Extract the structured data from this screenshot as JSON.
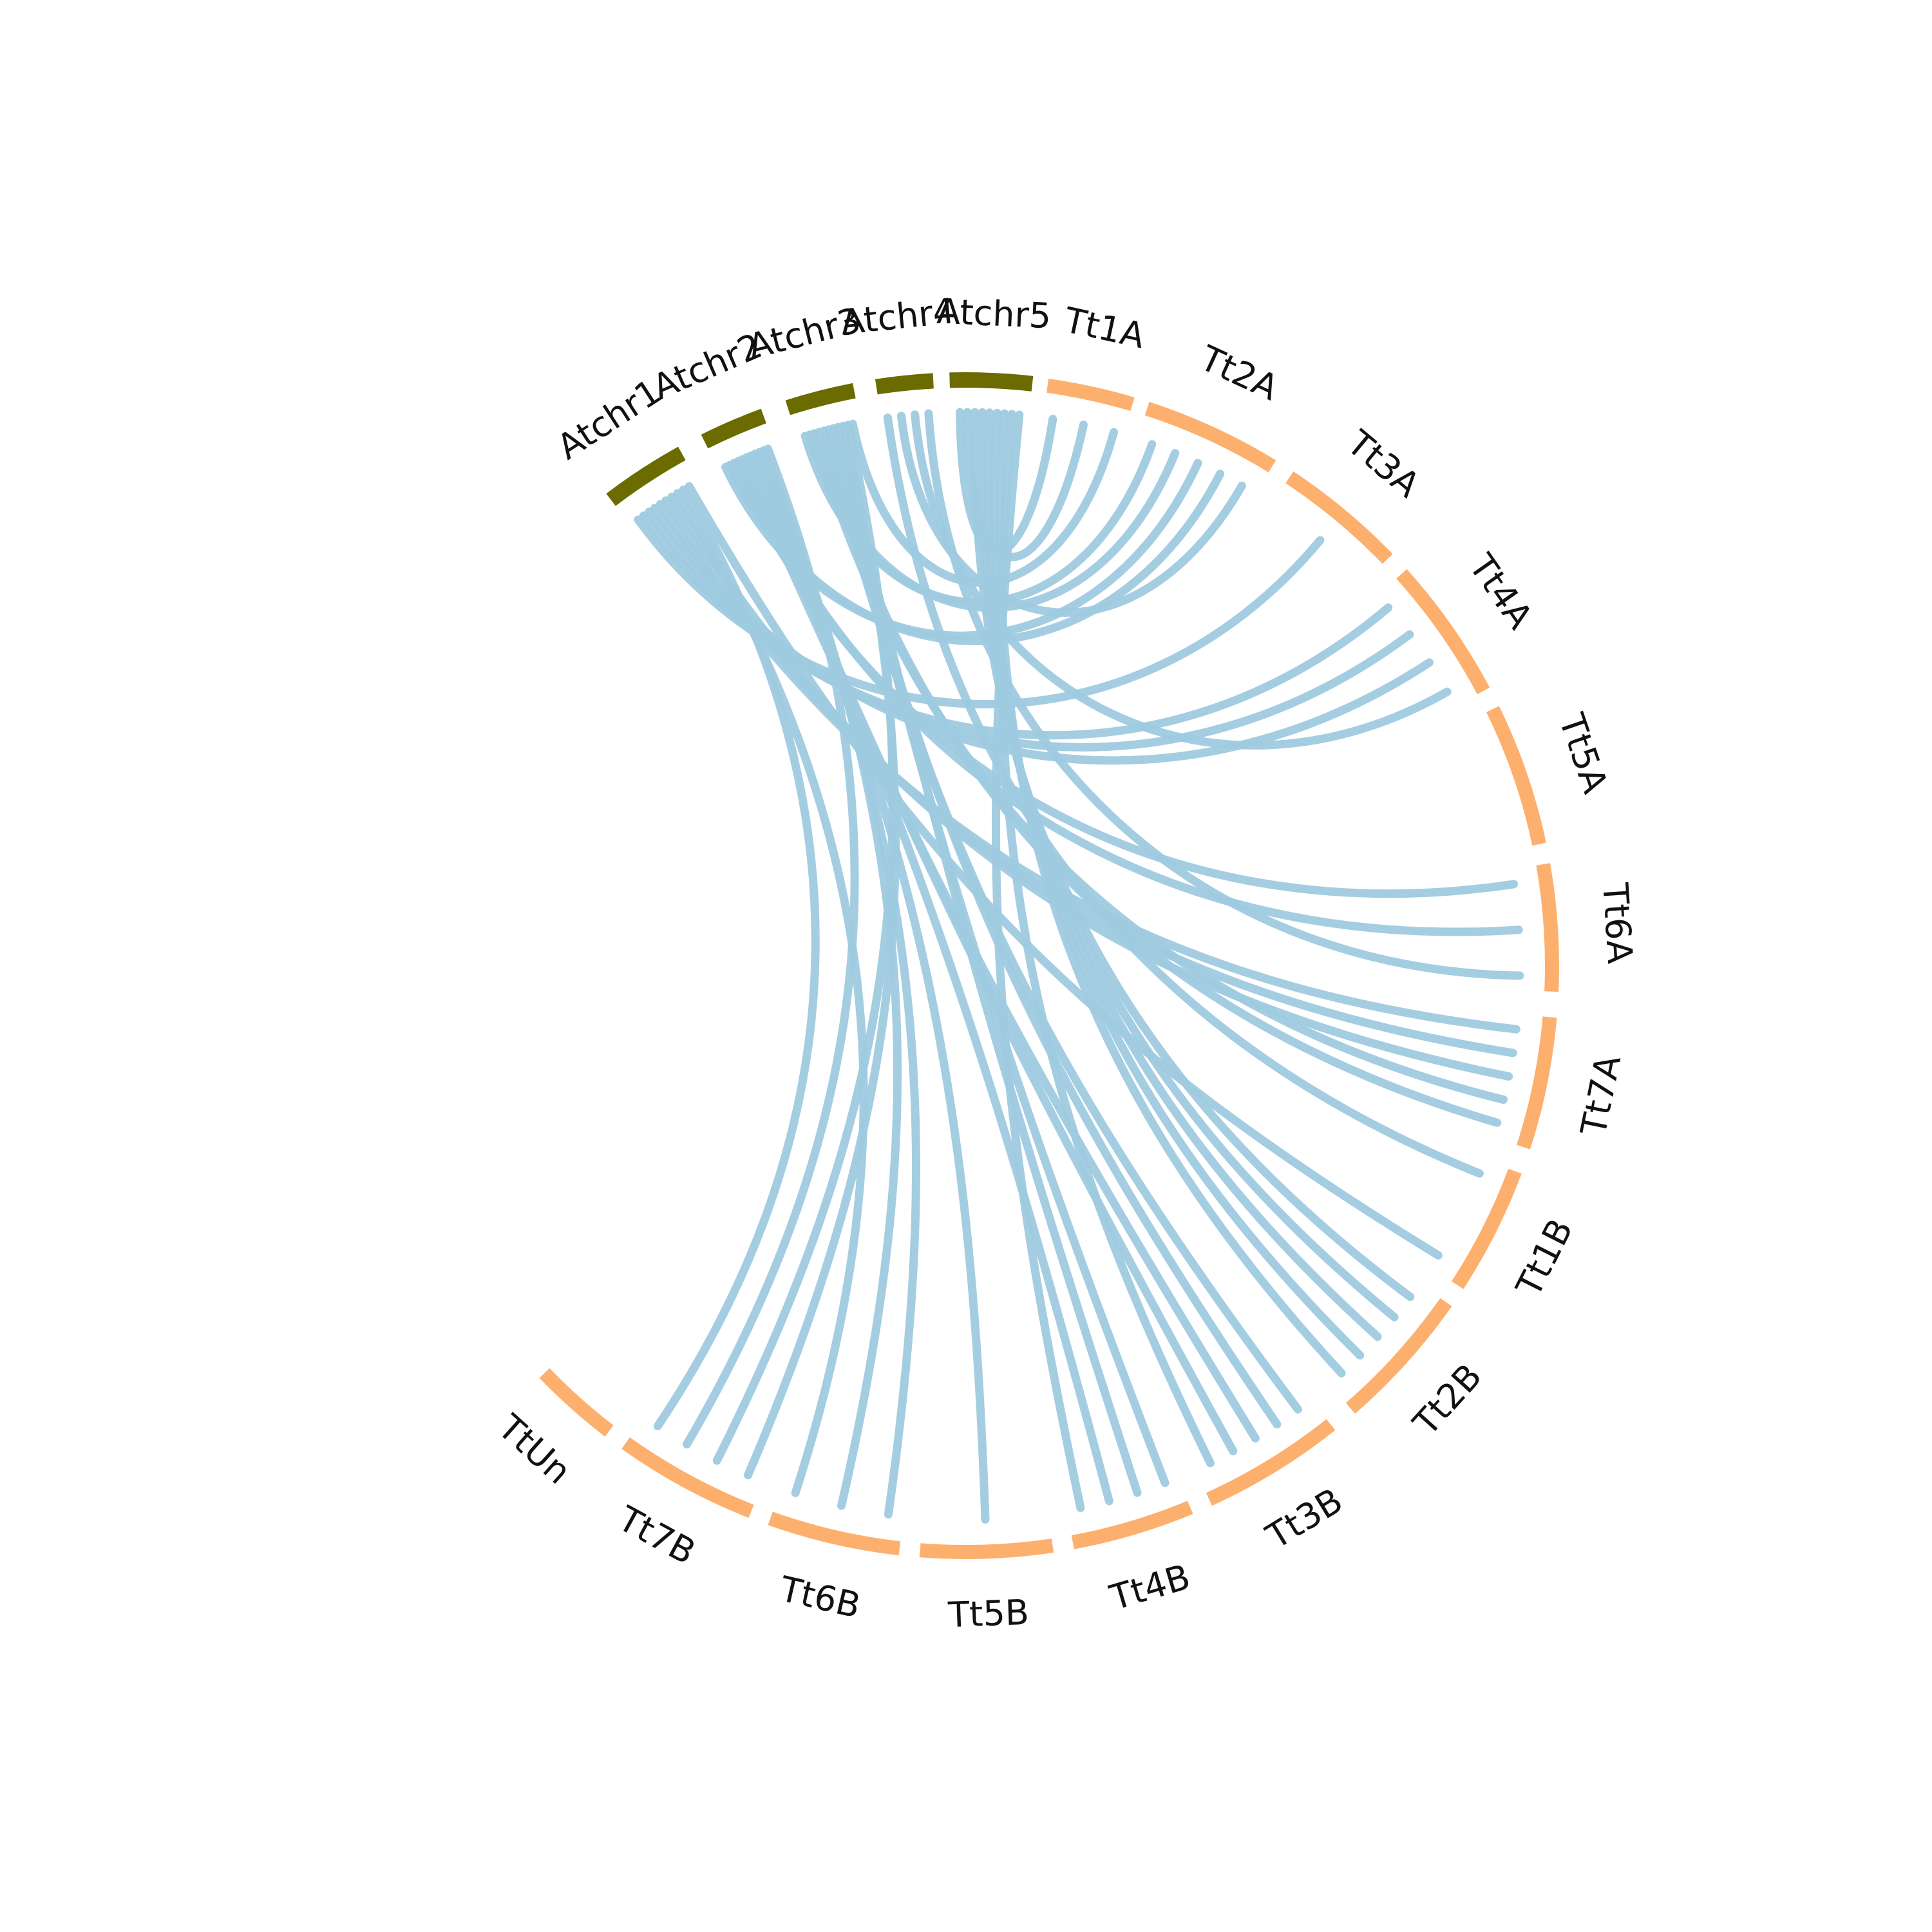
{
  "diagram": {
    "type": "circos",
    "colors": {
      "query_segment": "#6b6b00",
      "target_segment": "#fdb06e",
      "link": "#9fcae0"
    },
    "segments": [
      {
        "label": "Atchr1",
        "group": "query"
      },
      {
        "label": "Atchr2",
        "group": "query"
      },
      {
        "label": "Atchr3",
        "group": "query"
      },
      {
        "label": "Atchr4",
        "group": "query"
      },
      {
        "label": "Atchr5",
        "group": "query"
      },
      {
        "label": "Tt1A",
        "group": "target"
      },
      {
        "label": "Tt2A",
        "group": "target"
      },
      {
        "label": "Tt3A",
        "group": "target"
      },
      {
        "label": "Tt4A",
        "group": "target"
      },
      {
        "label": "Tt5A",
        "group": "target"
      },
      {
        "label": "Tt6A",
        "group": "target"
      },
      {
        "label": "Tt7A",
        "group": "target"
      },
      {
        "label": "Tt1B",
        "group": "target"
      },
      {
        "label": "Tt2B",
        "group": "target"
      },
      {
        "label": "Tt3B",
        "group": "target"
      },
      {
        "label": "Tt4B",
        "group": "target"
      },
      {
        "label": "Tt5B",
        "group": "target"
      },
      {
        "label": "Tt6B",
        "group": "target"
      },
      {
        "label": "Tt7B",
        "group": "target"
      },
      {
        "label": "TtUn",
        "group": "target"
      }
    ],
    "links": [
      {
        "from": "Atchr5",
        "to": "Tt1A"
      },
      {
        "from": "Atchr5",
        "to": "Tt1A"
      },
      {
        "from": "Atchr3",
        "to": "Tt2A"
      },
      {
        "from": "Atchr3",
        "to": "Tt2A"
      },
      {
        "from": "Atchr2",
        "to": "Tt2A"
      },
      {
        "from": "Atchr2",
        "to": "Tt2A"
      },
      {
        "from": "Atchr1",
        "to": "Tt3A"
      },
      {
        "from": "Atchr1",
        "to": "Tt4A"
      },
      {
        "from": "Atchr1",
        "to": "Tt4A"
      },
      {
        "from": "Atchr1",
        "to": "Tt4A"
      },
      {
        "from": "Atchr2",
        "to": "Tt6A"
      },
      {
        "from": "Atchr2",
        "to": "Tt6A"
      },
      {
        "from": "Atchr1",
        "to": "Tt7A"
      },
      {
        "from": "Atchr1",
        "to": "Tt7A"
      },
      {
        "from": "Atchr1",
        "to": "Tt7A"
      },
      {
        "from": "Atchr3",
        "to": "Tt7A"
      },
      {
        "from": "Atchr3",
        "to": "Tt7A"
      },
      {
        "from": "Atchr4",
        "to": "Tt1B"
      },
      {
        "from": "Atchr5",
        "to": "Tt2B"
      },
      {
        "from": "Atchr5",
        "to": "Tt2B"
      },
      {
        "from": "Atchr5",
        "to": "Tt2B"
      },
      {
        "from": "Atchr5",
        "to": "Tt2B"
      },
      {
        "from": "Atchr5",
        "to": "Tt2B"
      },
      {
        "from": "Atchr3",
        "to": "Tt3B"
      },
      {
        "from": "Atchr3",
        "to": "Tt3B"
      },
      {
        "from": "Atchr2",
        "to": "Tt3B"
      },
      {
        "from": "Atchr2",
        "to": "Tt3B"
      },
      {
        "from": "Atchr3",
        "to": "Tt4B"
      },
      {
        "from": "Atchr3",
        "to": "Tt4B"
      },
      {
        "from": "Atchr2",
        "to": "Tt4B"
      },
      {
        "from": "Atchr2",
        "to": "Tt5B"
      },
      {
        "from": "Atchr2",
        "to": "Tt6B"
      },
      {
        "from": "Atchr2",
        "to": "Tt6B"
      },
      {
        "from": "Atchr1",
        "to": "Tt6B"
      },
      {
        "from": "Atchr3",
        "to": "Tt7B"
      },
      {
        "from": "Atchr3",
        "to": "Tt7B"
      },
      {
        "from": "Atchr2",
        "to": "Tt7B"
      },
      {
        "from": "Atchr1",
        "to": "Tt7B"
      },
      {
        "from": "Atchr4",
        "to": "Tt2A"
      },
      {
        "from": "Atchr4",
        "to": "Tt4A"
      },
      {
        "from": "Atchr5",
        "to": "Tt3B"
      },
      {
        "from": "Atchr5",
        "to": "Tt4B"
      },
      {
        "from": "Atchr3",
        "to": "Tt1A"
      },
      {
        "from": "Atchr4",
        "to": "Tt6A"
      },
      {
        "from": "Atchr1",
        "to": "Tt1B"
      }
    ]
  }
}
